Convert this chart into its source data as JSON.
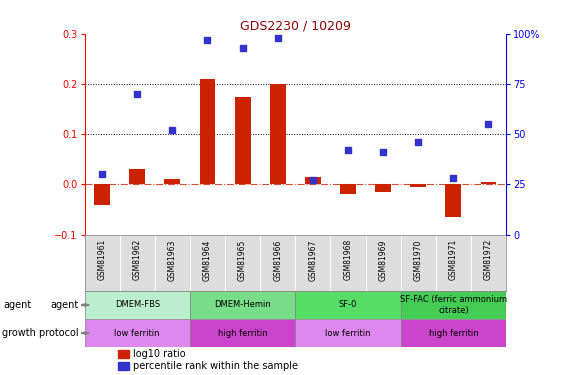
{
  "title": "GDS2230 / 10209",
  "samples": [
    "GSM81961",
    "GSM81962",
    "GSM81963",
    "GSM81964",
    "GSM81965",
    "GSM81966",
    "GSM81967",
    "GSM81968",
    "GSM81969",
    "GSM81970",
    "GSM81971",
    "GSM81972"
  ],
  "log10_ratio": [
    -0.04,
    0.03,
    0.01,
    0.21,
    0.175,
    0.2,
    0.015,
    -0.02,
    -0.015,
    -0.005,
    -0.065,
    0.005
  ],
  "percentile_rank_pct": [
    30,
    70,
    52,
    97,
    93,
    98,
    27,
    42,
    41,
    46,
    28,
    55
  ],
  "bar_color": "#cc2200",
  "dot_color": "#3333cc",
  "ylim_left": [
    -0.1,
    0.3
  ],
  "ylim_right": [
    0,
    100
  ],
  "yticks_left": [
    -0.1,
    0.0,
    0.1,
    0.2,
    0.3
  ],
  "yticks_right": [
    0,
    25,
    50,
    75,
    100
  ],
  "hline_y": [
    0.1,
    0.2
  ],
  "agent_groups": [
    {
      "label": "DMEM-FBS",
      "start": 0,
      "end": 3,
      "color": "#bbeecc"
    },
    {
      "label": "DMEM-Hemin",
      "start": 3,
      "end": 6,
      "color": "#77dd88"
    },
    {
      "label": "SF-0",
      "start": 6,
      "end": 9,
      "color": "#55dd66"
    },
    {
      "label": "SF-FAC (ferric ammonium\ncitrate)",
      "start": 9,
      "end": 12,
      "color": "#44cc55"
    }
  ],
  "growth_groups": [
    {
      "label": "low ferritin",
      "start": 0,
      "end": 3,
      "color": "#dd88ee"
    },
    {
      "label": "high ferritin",
      "start": 3,
      "end": 6,
      "color": "#cc44cc"
    },
    {
      "label": "low ferritin",
      "start": 6,
      "end": 9,
      "color": "#dd88ee"
    },
    {
      "label": "high ferritin",
      "start": 9,
      "end": 12,
      "color": "#cc44cc"
    }
  ]
}
